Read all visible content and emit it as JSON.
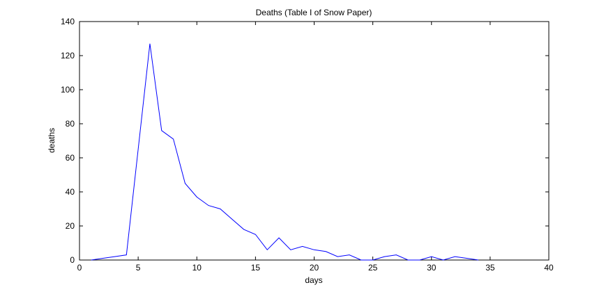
{
  "chart_data": {
    "type": "line",
    "title": "Deaths (Table I of Snow Paper)",
    "xlabel": "days",
    "ylabel": "deaths",
    "xlim": [
      0,
      40
    ],
    "ylim": [
      0,
      140
    ],
    "xticks": [
      0,
      5,
      10,
      15,
      20,
      25,
      30,
      35,
      40
    ],
    "yticks": [
      0,
      20,
      40,
      60,
      80,
      100,
      120,
      140
    ],
    "grid": false,
    "legend": "none",
    "series": [
      {
        "color": "#0000ff",
        "x": [
          1,
          2,
          3,
          4,
          5,
          6,
          7,
          8,
          9,
          10,
          11,
          12,
          13,
          14,
          15,
          16,
          17,
          18,
          19,
          20,
          21,
          22,
          23,
          24,
          25,
          26,
          27,
          28,
          29,
          30,
          31,
          32,
          33,
          34
        ],
        "y": [
          0,
          1,
          2,
          3,
          65,
          127,
          76,
          71,
          45,
          37,
          32,
          30,
          24,
          18,
          15,
          6,
          13,
          6,
          8,
          6,
          5,
          2,
          3,
          0,
          0,
          2,
          3,
          0,
          0,
          2,
          0,
          2,
          1,
          0
        ]
      }
    ]
  }
}
